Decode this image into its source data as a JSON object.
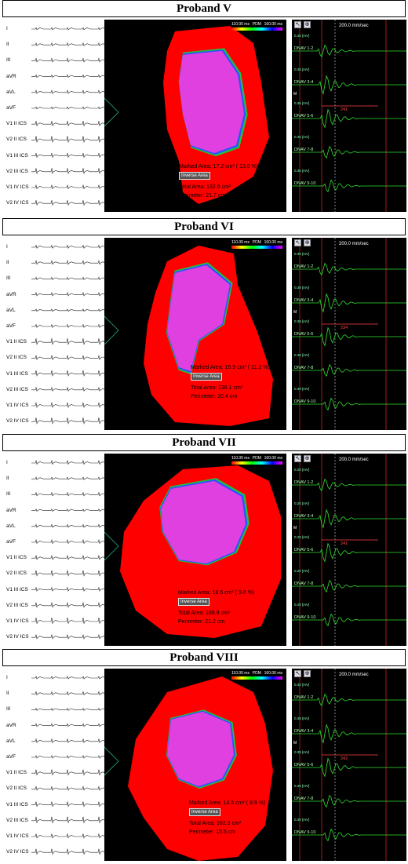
{
  "leads": [
    "I",
    "II",
    "III",
    "aVR",
    "aVL",
    "aVF",
    "V1 II ICS",
    "V2 II ICS",
    "V1 III ICS",
    "V2 III ICS",
    "V1 IV ICS",
    "V2 IV ICS"
  ],
  "egm_channels": [
    "DNAV 1-2",
    "DNAV 3-4",
    "DNAV 5-6",
    "DNAV 7-8",
    "DNAV 9-10"
  ],
  "labels": {
    "marked_area": "Marked Area:",
    "inverse_area": "Inverse Area",
    "total_area": "Total Area:",
    "perimeter": "Perimeter:",
    "cm2": "cm",
    "cm": "cm",
    "pdm": "PDM",
    "mv": "[mV]",
    "m": "M"
  },
  "colors": {
    "healthy": "#ff0000",
    "scar_core": "#e040e0",
    "border_blue": "#3050ff",
    "border_green": "#20c040",
    "egm_trace": "#30e030",
    "marker_red": "#d02020"
  },
  "panels": [
    {
      "title": "Proband V",
      "scale_min": "110.00 ms",
      "scale_max": "160.00 ms",
      "speed": "200.0 mm/sec",
      "marked_area": "17.2",
      "marked_pct": "13.0",
      "total_area": "132.6",
      "perimeter": "21.7",
      "measurement": "241",
      "mv": [
        "0.35",
        "0.35",
        "0.35",
        "0.35",
        "0.35"
      ]
    },
    {
      "title": "Proband VI",
      "scale_min": "110.00 ms",
      "scale_max": "160.00 ms",
      "speed": "200.0 mm/sec",
      "marked_area": "15.5",
      "marked_pct": "11.2",
      "total_area": "138.1",
      "perimeter": "20.4",
      "measurement": "234",
      "mv": [
        "0.39",
        "0.39",
        "0.39",
        "0.39",
        "0.39"
      ]
    },
    {
      "title": "Proband VII",
      "scale_min": "110.00 ms",
      "scale_max": "160.00 ms",
      "speed": "200.0 mm/sec",
      "marked_area": "18.5",
      "marked_pct": "9.8",
      "total_area": "188.9",
      "perimeter": "21.2",
      "measurement": "241",
      "mv": [
        "0.20",
        "0.20",
        "0.20",
        "0.20",
        "0.20"
      ]
    },
    {
      "title": "Proband VIII",
      "scale_min": "110.00 ms",
      "scale_max": "160.00 ms",
      "speed": "200.0 mm/sec",
      "marked_area": "14.5",
      "marked_pct": "8.9",
      "total_area": "162.3",
      "perimeter": "15.5",
      "measurement": "242",
      "mv": [
        "0.32",
        "0.39",
        "0.39",
        "0.39",
        "0.39"
      ]
    }
  ]
}
